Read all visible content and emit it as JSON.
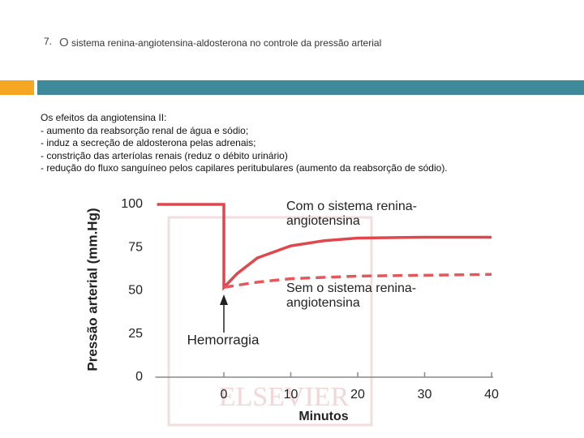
{
  "header": {
    "number": "7.",
    "title": "O sistema renina-angiotensina-aldosterona no controle da pressão arterial"
  },
  "body": {
    "lines": [
      "Os efeitos da angiotensina II:",
      "- aumento da reabsorção renal de água e sódio;",
      "- induz a secreção de aldosterona pelas adrenais;",
      "- constrição das arteríolas renais (reduz o débito urinário)",
      "- redução do fluxo sanguíneo pelos capilares peritubulares (aumento da reabsorção de sódio)."
    ]
  },
  "chart_data": {
    "type": "line",
    "ylabel": "Pressão arterial (mm.Hg)",
    "xlabel": "Minutos",
    "annotation": "Hemorragia",
    "watermark": "ELSEVIER",
    "xlim": [
      -10,
      40
    ],
    "xticks": [
      0,
      10,
      20,
      30,
      40
    ],
    "ylim": [
      0,
      100
    ],
    "yticks": [
      0,
      25,
      50,
      75,
      100
    ],
    "series": [
      {
        "name": "Com o sistema renina-angiotensina",
        "color": "#e0474c",
        "dashed": false,
        "x": [
          -10,
          0,
          0,
          2,
          5,
          10,
          15,
          20,
          30,
          40
        ],
        "values": [
          100,
          100,
          52,
          60,
          69,
          76,
          79,
          80.5,
          81,
          81
        ]
      },
      {
        "name": "Sem o sistema renina-angiotensina",
        "color": "#e4585c",
        "dashed": true,
        "x": [
          0,
          5,
          10,
          20,
          30,
          40
        ],
        "values": [
          52,
          55,
          57,
          58.5,
          59,
          59.5
        ]
      }
    ]
  }
}
